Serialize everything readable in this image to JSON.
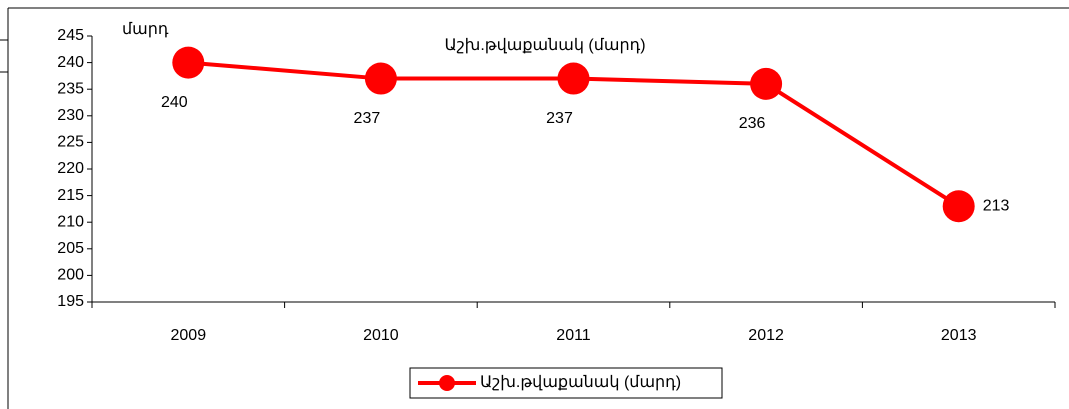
{
  "chart_data": {
    "type": "line",
    "title": "Աշխ.թվաքանակ (մարդ)",
    "y_axis_label": "մարդ",
    "categories": [
      "2009",
      "2010",
      "2011",
      "2012",
      "2013"
    ],
    "series": [
      {
        "name": "Աշխ.թվաքանակ (մարդ)",
        "color": "#ff0000",
        "values": [
          240,
          237,
          237,
          236,
          213
        ]
      }
    ],
    "ylim": [
      195,
      245
    ],
    "yticks": [
      195,
      200,
      205,
      210,
      215,
      220,
      225,
      230,
      235,
      240,
      245
    ],
    "legend": "bottom"
  }
}
